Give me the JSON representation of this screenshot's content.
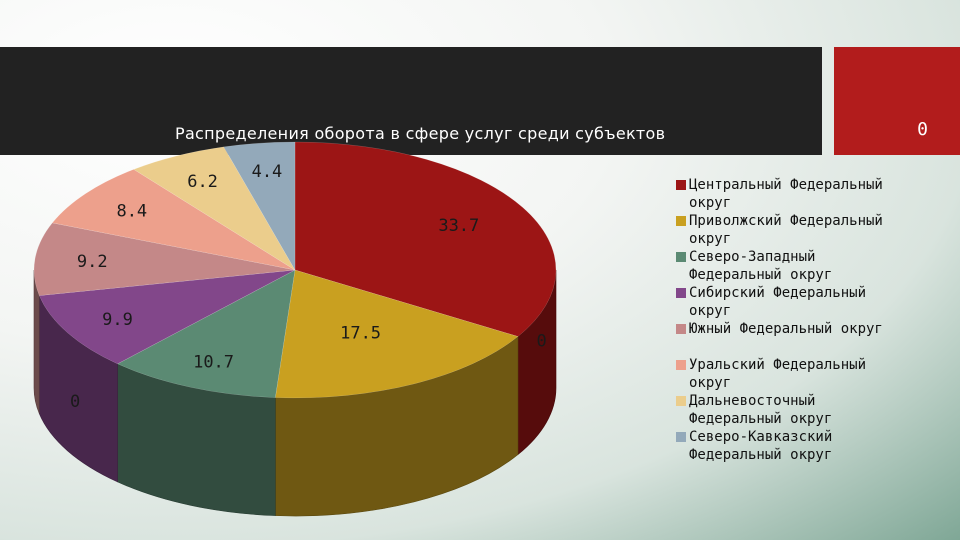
{
  "slide": {
    "title": "Распределения оборота в сфере услуг среди субъектов",
    "accent_value": "0",
    "colors": {
      "header_band": "#222222",
      "accent_box": "#b21c1c"
    }
  },
  "chart_data": {
    "type": "pie",
    "style": "3d",
    "title": "Распределения оборота в сфере услуг среди субъектов",
    "legend_position": "right",
    "categories": [
      "Центральный Федеральный округ",
      "Приволжский Федеральный округ",
      "Северо-Западный Федеральный округ",
      "Сибирский Федеральный округ",
      "Южный Федеральный округ",
      "Уральский Федеральный округ",
      "Дальневосточный Федеральный округ",
      "Северо-Кавказский Федеральный округ"
    ],
    "values": [
      33.7,
      17.5,
      10.7,
      9.9,
      9.2,
      8.4,
      6.2,
      4.4
    ],
    "colors": [
      "#9c1515",
      "#c9a020",
      "#5b8a73",
      "#82478a",
      "#c48888",
      "#eda08c",
      "#ebcd8c",
      "#93a9ba"
    ],
    "depth_labels": [
      "0",
      "0"
    ]
  }
}
